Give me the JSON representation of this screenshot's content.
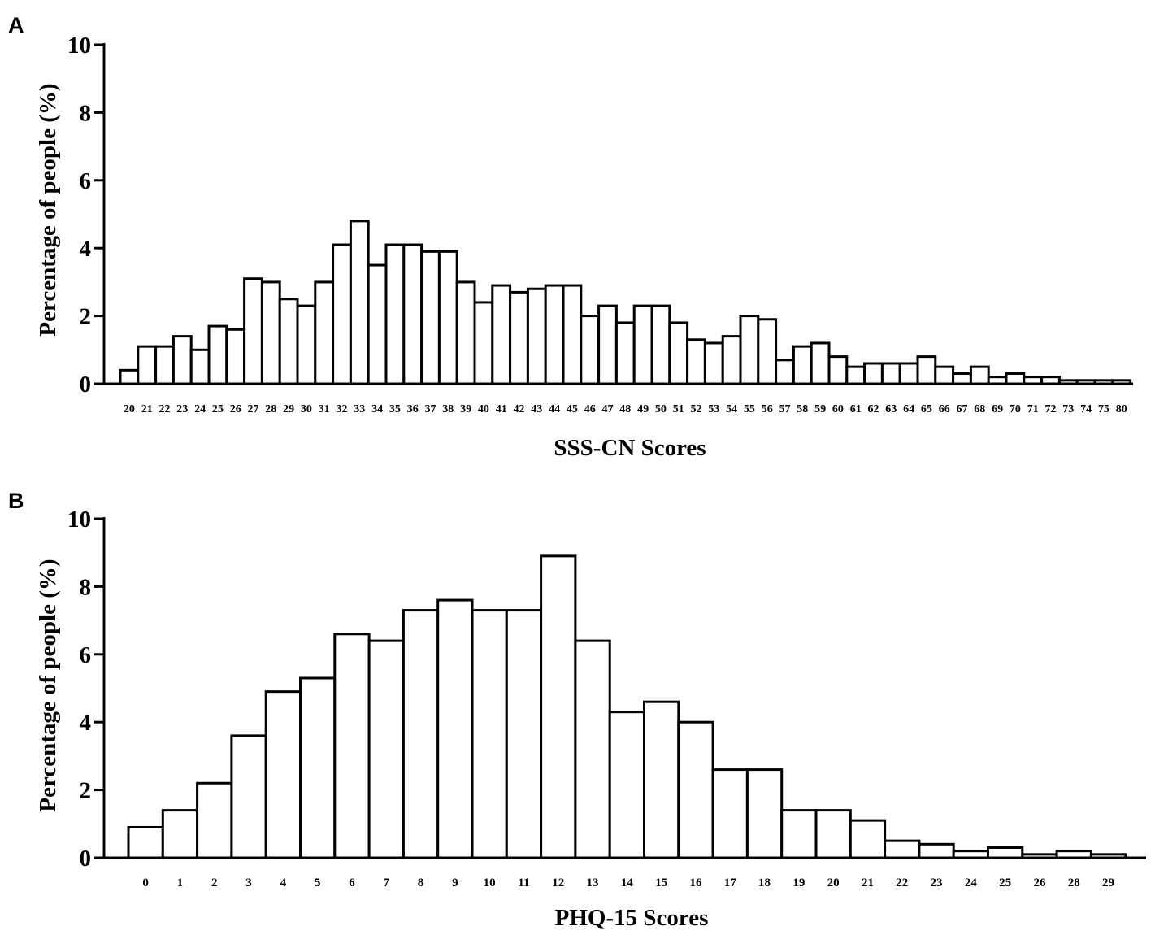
{
  "chart_data": [
    {
      "type": "bar",
      "panel": "A",
      "xlabel": "SSS-CN Scores",
      "ylabel": "Percentage of people  (%)",
      "ylim": [
        0,
        10
      ],
      "yticks": [
        "0",
        "2",
        "4",
        "6",
        "8",
        "10"
      ],
      "categories": [
        "20",
        "21",
        "22",
        "23",
        "24",
        "25",
        "26",
        "27",
        "28",
        "29",
        "30",
        "31",
        "32",
        "33",
        "34",
        "35",
        "36",
        "37",
        "38",
        "39",
        "40",
        "41",
        "42",
        "43",
        "44",
        "45",
        "46",
        "47",
        "48",
        "49",
        "50",
        "51",
        "52",
        "53",
        "54",
        "55",
        "56",
        "57",
        "58",
        "59",
        "60",
        "61",
        "62",
        "63",
        "64",
        "65",
        "66",
        "67",
        "68",
        "69",
        "70",
        "71",
        "72",
        "73",
        "74",
        "75",
        "80"
      ],
      "values": [
        0.4,
        1.1,
        1.1,
        1.4,
        1.0,
        1.7,
        1.6,
        3.1,
        3.0,
        2.5,
        2.3,
        3.0,
        4.1,
        4.8,
        3.5,
        4.1,
        4.1,
        3.9,
        3.9,
        3.0,
        2.4,
        2.9,
        2.7,
        2.8,
        2.9,
        2.9,
        2.0,
        2.3,
        1.8,
        2.3,
        2.3,
        1.8,
        1.3,
        1.2,
        1.4,
        2.0,
        1.9,
        0.7,
        1.1,
        1.2,
        0.8,
        0.5,
        0.6,
        0.6,
        0.6,
        0.8,
        0.5,
        0.3,
        0.5,
        0.2,
        0.3,
        0.2,
        0.2,
        0.1,
        0.1,
        0.1,
        0.1
      ]
    },
    {
      "type": "bar",
      "panel": "B",
      "xlabel": "PHQ-15 Scores",
      "ylabel": "Percentage of people (%)",
      "ylim": [
        0,
        10
      ],
      "yticks": [
        "0",
        "2",
        "4",
        "6",
        "8",
        "10"
      ],
      "categories": [
        "0",
        "1",
        "2",
        "3",
        "4",
        "5",
        "6",
        "7",
        "8",
        "9",
        "10",
        "11",
        "12",
        "13",
        "14",
        "15",
        "16",
        "17",
        "18",
        "19",
        "20",
        "21",
        "22",
        "23",
        "24",
        "25",
        "26",
        "28",
        "29"
      ],
      "values": [
        0.9,
        1.4,
        2.2,
        3.6,
        4.9,
        5.3,
        6.6,
        6.4,
        7.3,
        7.6,
        7.3,
        7.3,
        8.9,
        6.4,
        4.3,
        4.6,
        4.0,
        2.6,
        2.6,
        1.4,
        1.4,
        1.1,
        0.5,
        0.4,
        0.2,
        0.3,
        0.1,
        0.2,
        0.1
      ]
    }
  ]
}
